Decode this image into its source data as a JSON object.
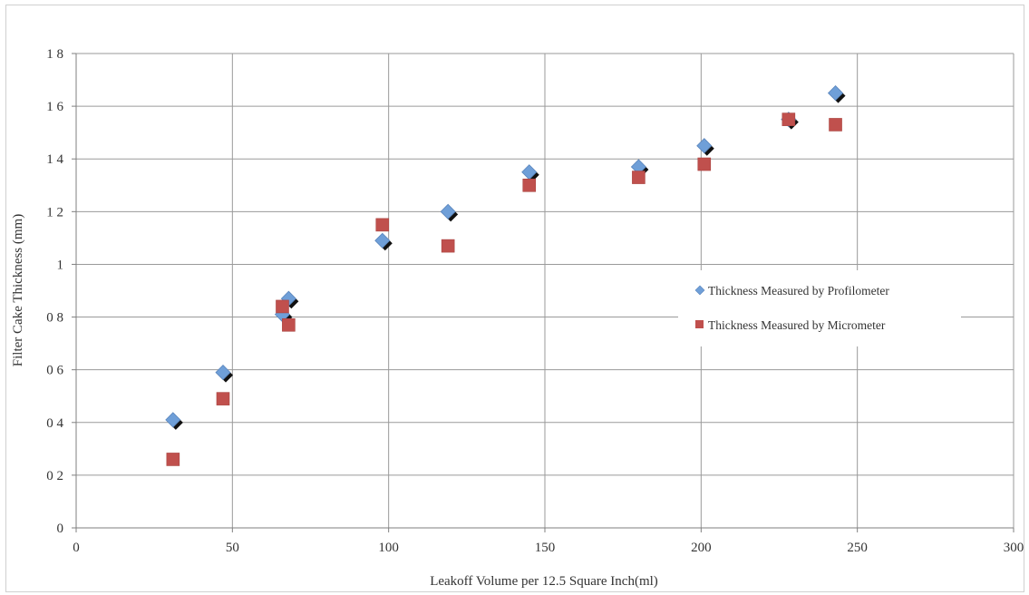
{
  "chart_data": {
    "type": "scatter",
    "xlabel": "Leakoff Volume per 12.5 Square Inch(ml)",
    "ylabel": "Filter Cake Thickness (mm)",
    "xlim": [
      0,
      300
    ],
    "ylim": [
      0,
      1.8
    ],
    "xticks": [
      0,
      50,
      100,
      150,
      200,
      250,
      300
    ],
    "yticks": [
      0,
      0.2,
      0.4,
      0.6,
      0.8,
      1,
      1.2,
      1.4,
      1.6,
      1.8
    ],
    "xtick_labels": [
      "0",
      "50",
      "100",
      "150",
      "200",
      "250",
      "300"
    ],
    "ytick_labels": [
      "0",
      "0 2",
      "0 4",
      "0 6",
      "0 8",
      "1",
      "1 2",
      "1 4",
      "1 6",
      "1 8"
    ],
    "grid": true,
    "legend_position": "right",
    "series": [
      {
        "name": "Thickness Measured by Profilometer",
        "marker": "diamond",
        "color": "#6f9fd8",
        "shadow_color": "#111111",
        "points": [
          {
            "x": 31,
            "y": 0.41
          },
          {
            "x": 47,
            "y": 0.59
          },
          {
            "x": 66,
            "y": 0.81
          },
          {
            "x": 68,
            "y": 0.87
          },
          {
            "x": 98,
            "y": 1.09
          },
          {
            "x": 119,
            "y": 1.2
          },
          {
            "x": 145,
            "y": 1.35
          },
          {
            "x": 180,
            "y": 1.37
          },
          {
            "x": 201,
            "y": 1.45
          },
          {
            "x": 228,
            "y": 1.55
          },
          {
            "x": 243,
            "y": 1.65
          }
        ]
      },
      {
        "name": "Thickness Measured by Micrometer",
        "marker": "square",
        "color": "#c0504d",
        "points": [
          {
            "x": 31,
            "y": 0.26
          },
          {
            "x": 47,
            "y": 0.49
          },
          {
            "x": 66,
            "y": 0.84
          },
          {
            "x": 68,
            "y": 0.77
          },
          {
            "x": 98,
            "y": 1.15
          },
          {
            "x": 119,
            "y": 1.07
          },
          {
            "x": 145,
            "y": 1.3
          },
          {
            "x": 180,
            "y": 1.33
          },
          {
            "x": 201,
            "y": 1.38
          },
          {
            "x": 228,
            "y": 1.55
          },
          {
            "x": 243,
            "y": 1.53
          }
        ]
      }
    ]
  }
}
